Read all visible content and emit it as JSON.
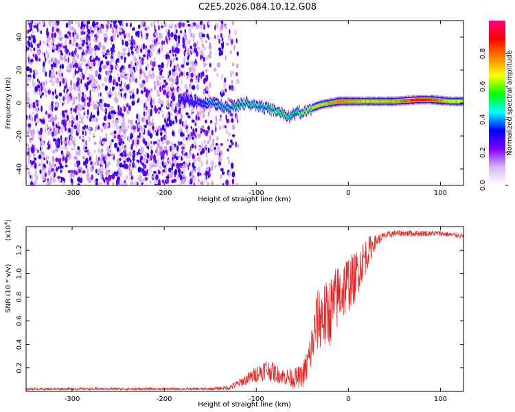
{
  "title": "C2E5.2026.084.10.12.G08",
  "chart_data": [
    {
      "type": "heatmap",
      "description_role": "spectrogram",
      "xlabel": "Height of straight line (km)",
      "ylabel": "Frequency (Hz)",
      "xlim": [
        -350,
        125
      ],
      "ylim": [
        -50,
        50
      ],
      "xticks": [
        -300,
        -200,
        -100,
        0,
        100
      ],
      "yticks": [
        -40,
        -20,
        0,
        20,
        40
      ],
      "colorbar": {
        "label": "Normalized spectral amplitude",
        "range": [
          0,
          1
        ],
        "ticks": [
          0.0,
          0.2,
          0.4,
          0.6,
          0.8
        ],
        "colors": [
          "#ffffff",
          "#d9b8f5",
          "#8000ff",
          "#0000ff",
          "#00ffff",
          "#00ff00",
          "#ffff00",
          "#ff8000",
          "#ff0000",
          "#ff0080"
        ]
      },
      "signal_track": {
        "x": [
          -185,
          -170,
          -150,
          -130,
          -110,
          -95,
          -85,
          -75,
          -65,
          -58,
          -50,
          -40,
          -30,
          -20,
          -10,
          0,
          20,
          50,
          75,
          90,
          110,
          125
        ],
        "y": [
          2,
          1,
          0,
          -3,
          0,
          -2,
          -4,
          -6,
          -8,
          -6,
          -5,
          -3,
          -1,
          0,
          1,
          1,
          1,
          1,
          2,
          2,
          1,
          1
        ],
        "amplitude": [
          0.3,
          0.35,
          0.45,
          0.5,
          0.55,
          0.5,
          0.55,
          0.6,
          0.55,
          0.5,
          0.6,
          0.65,
          0.7,
          0.75,
          0.8,
          0.75,
          0.7,
          0.72,
          0.95,
          0.85,
          0.7,
          0.65
        ]
      },
      "noise_region": {
        "x_range": [
          -350,
          -130
        ],
        "y_range": [
          -50,
          50
        ]
      }
    },
    {
      "type": "line",
      "xlabel": "Height of straight line (km)",
      "ylabel": "SNR (10 * v/v)",
      "y_multiplier_label": "(x10",
      "y_multiplier_exp": "4",
      "y_multiplier_close": ")",
      "xlim": [
        -350,
        125
      ],
      "ylim": [
        0,
        1.4
      ],
      "xticks": [
        -300,
        -200,
        -100,
        0,
        100
      ],
      "yticks": [
        0.2,
        0.4,
        0.6,
        0.8,
        1.0,
        1.2
      ],
      "ytick_labels": [
        "0.2",
        "0.4",
        "0.6",
        "0.8",
        "1.0",
        "1.2"
      ],
      "color": "#ee2222",
      "series": [
        {
          "name": "SNR",
          "x": [
            -350,
            -300,
            -250,
            -200,
            -150,
            -130,
            -120,
            -110,
            -100,
            -90,
            -80,
            -70,
            -60,
            -50,
            -45,
            -40,
            -35,
            -30,
            -25,
            -20,
            -15,
            -10,
            -5,
            0,
            5,
            10,
            15,
            20,
            25,
            30,
            35,
            40,
            50,
            60,
            80,
            100,
            110,
            125
          ],
          "y": [
            0.02,
            0.02,
            0.02,
            0.02,
            0.02,
            0.03,
            0.06,
            0.1,
            0.14,
            0.18,
            0.15,
            0.12,
            0.1,
            0.12,
            0.2,
            0.35,
            0.55,
            0.62,
            0.6,
            0.65,
            0.72,
            0.8,
            0.85,
            0.9,
            0.92,
            1.0,
            1.08,
            1.15,
            1.22,
            1.27,
            1.3,
            1.32,
            1.34,
            1.34,
            1.34,
            1.34,
            1.33,
            1.32
          ]
        }
      ],
      "noise_amplitude": {
        "x": [
          -350,
          -150,
          -130,
          -110,
          -90,
          -70,
          -50,
          -40,
          -30,
          -20,
          -10,
          0,
          10,
          20,
          30,
          40,
          125
        ],
        "y": [
          0.01,
          0.01,
          0.02,
          0.05,
          0.09,
          0.07,
          0.1,
          0.2,
          0.3,
          0.3,
          0.28,
          0.25,
          0.2,
          0.15,
          0.05,
          0.03,
          0.02
        ]
      }
    }
  ]
}
